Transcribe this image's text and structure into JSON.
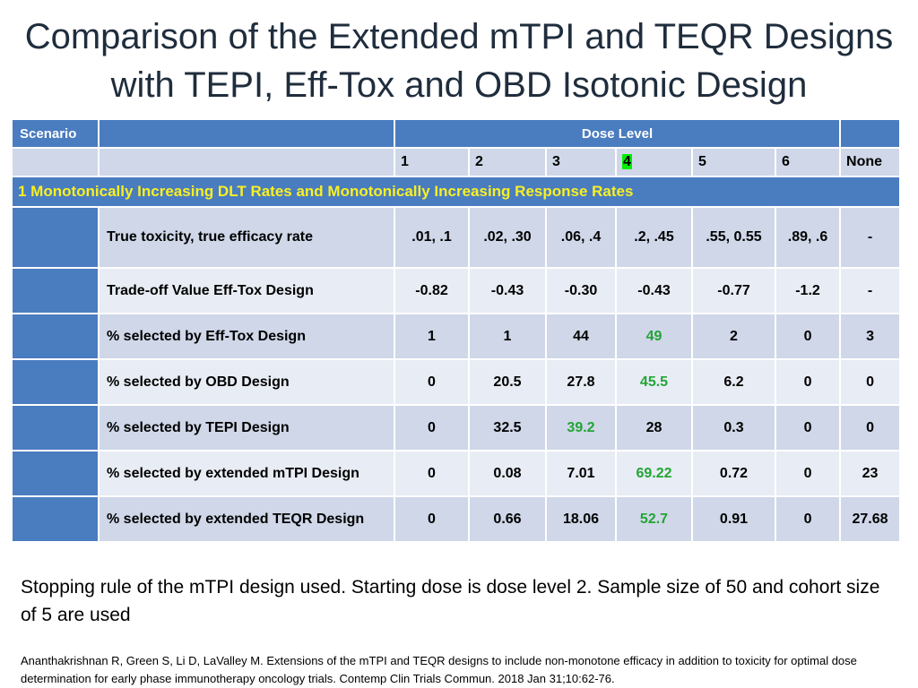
{
  "title": {
    "line1": "Comparison of the Extended mTPI and TEQR Designs",
    "line2": "with TEPI, Eff-Tox and OBD Isotonic Design"
  },
  "table": {
    "scenario_header": "Scenario",
    "dose_level_header": "Dose Level",
    "dose_levels": [
      "1",
      "2",
      "3",
      "4",
      "5",
      "6",
      "None"
    ],
    "highlighted_dose": "4",
    "section_title": "1  Monotonically Increasing DLT Rates and Monotonically Increasing Response Rates",
    "rows": [
      {
        "label": "True toxicity, true efficacy rate",
        "values": [
          ".01, .1",
          ".02, .30",
          ".06, .4",
          ".2, .45",
          ".55, 0.55",
          ".89, .6",
          "-"
        ]
      },
      {
        "label": "Trade-off Value Eff-Tox Design",
        "values": [
          "-0.82",
          "-0.43",
          "-0.30",
          "-0.43",
          "-0.77",
          "-1.2",
          "-"
        ]
      },
      {
        "label": "% selected by Eff-Tox Design",
        "values": [
          "1",
          "1",
          "44",
          "49",
          "2",
          "0",
          "3"
        ]
      },
      {
        "label": "% selected by OBD Design",
        "values": [
          "0",
          "20.5",
          "27.8",
          "45.5",
          "6.2",
          "0",
          "0"
        ]
      },
      {
        "label": "% selected by TEPI Design",
        "values": [
          "0",
          "32.5",
          "39.2",
          "28",
          "0.3",
          "0",
          "0"
        ]
      },
      {
        "label": "% selected by extended mTPI Design",
        "values": [
          "0",
          "0.08",
          "7.01",
          "69.22",
          "0.72",
          "0",
          "23"
        ]
      },
      {
        "label": "% selected by extended TEQR Design",
        "values": [
          "0",
          "0.66",
          "18.06",
          "52.7",
          "0.91",
          "0",
          "27.68"
        ]
      }
    ],
    "green_color": "#22a535",
    "header_color": "#4a7cc0",
    "section_text_color": "#f8f022"
  },
  "note": "Stopping rule of the mTPI design used.  Starting dose is dose level 2. Sample size of 50 and cohort size of 5 are used",
  "reference": "Ananthakrishnan R, Green S, Li D, LaValley M. Extensions of the mTPI and TEQR designs to include non-monotone efficacy in addition to toxicity for optimal dose determination for early phase immunotherapy oncology trials. Contemp Clin Trials Commun. 2018 Jan 31;10:62-76."
}
